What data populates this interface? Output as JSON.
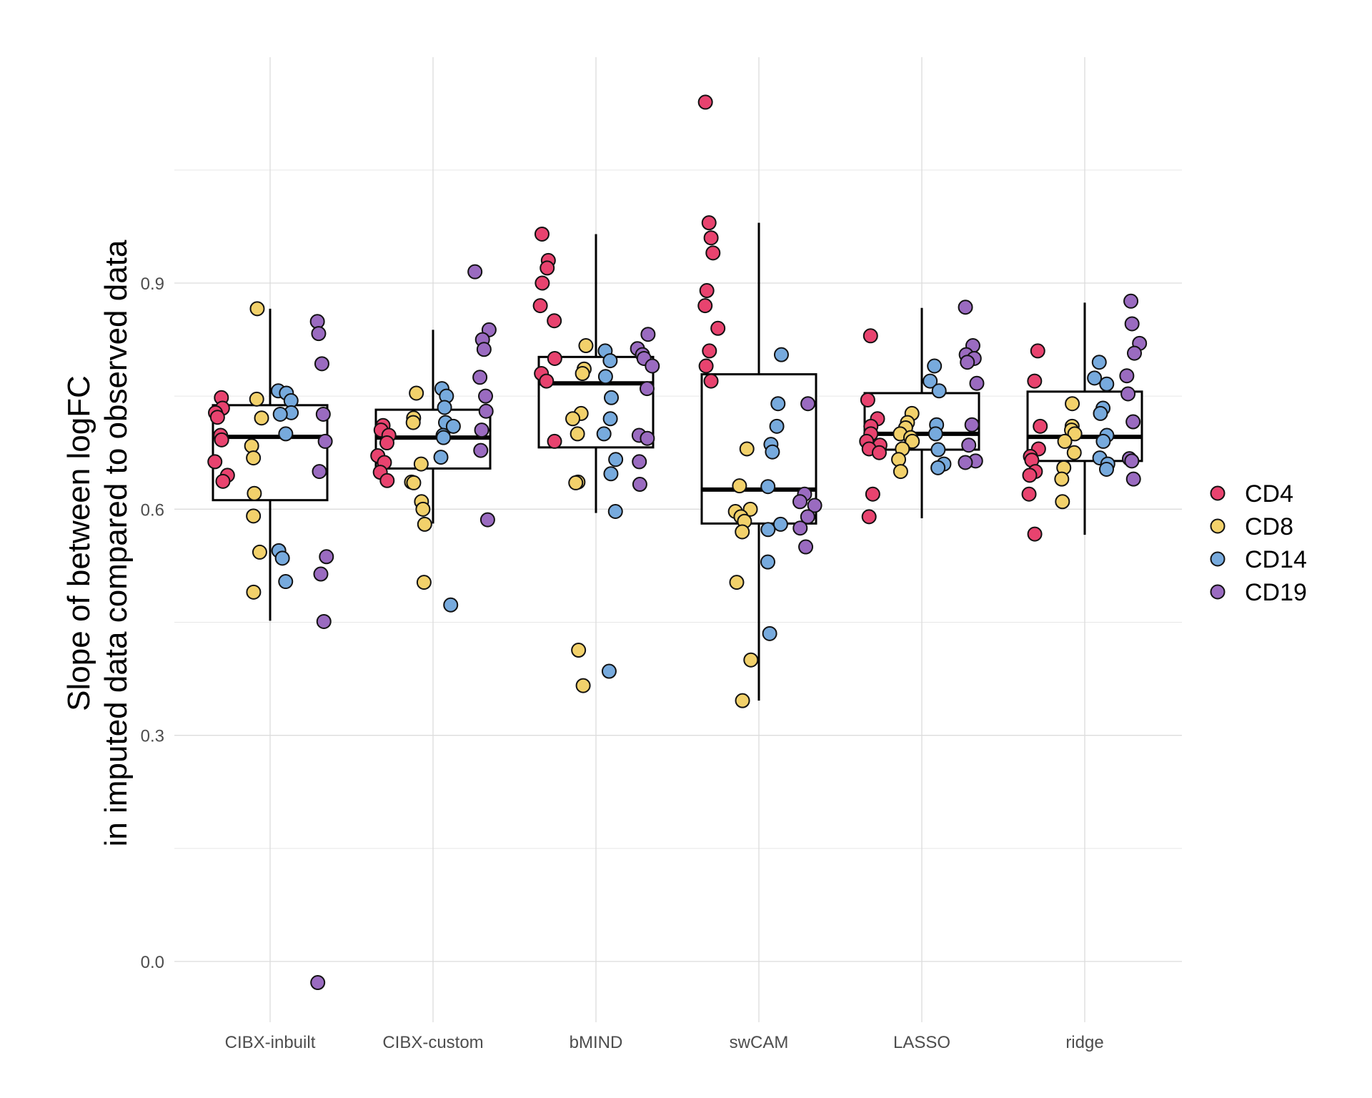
{
  "chart_data": {
    "type": "boxplot-jitter",
    "title": "",
    "xlabel": "",
    "ylabel_lines": [
      "Slope of between logFC",
      "in imputed data compared to observed data"
    ],
    "ylim": [
      -0.09,
      1.2
    ],
    "yticks": [
      0.0,
      0.3,
      0.6,
      0.9
    ],
    "ytick_labels": [
      "0.0",
      "0.3",
      "0.6",
      "0.9"
    ],
    "grid": true,
    "legend_position": "right",
    "categories": [
      "CIBX-inbuilt",
      "CIBX-custom",
      "bMIND",
      "swCAM",
      "LASSO",
      "ridge"
    ],
    "legend": [
      {
        "name": "CD4",
        "color": "#E8436F"
      },
      {
        "name": "CD8",
        "color": "#F2D16B"
      },
      {
        "name": "CD14",
        "color": "#77AADD"
      },
      {
        "name": "CD19",
        "color": "#9A6BC0"
      }
    ],
    "boxes": [
      {
        "category": "CIBX-inbuilt",
        "whisker_low": 0.452,
        "q1": 0.612,
        "median": 0.696,
        "q3": 0.738,
        "whisker_high": 0.866
      },
      {
        "category": "CIBX-custom",
        "whisker_low": 0.581,
        "q1": 0.654,
        "median": 0.695,
        "q3": 0.732,
        "whisker_high": 0.838
      },
      {
        "category": "bMIND",
        "whisker_low": 0.595,
        "q1": 0.682,
        "median": 0.767,
        "q3": 0.802,
        "whisker_high": 0.965
      },
      {
        "category": "swCAM",
        "whisker_low": 0.346,
        "q1": 0.581,
        "median": 0.626,
        "q3": 0.779,
        "whisker_high": 0.98
      },
      {
        "category": "LASSO",
        "whisker_low": 0.588,
        "q1": 0.679,
        "median": 0.7,
        "q3": 0.754,
        "whisker_high": 0.867
      },
      {
        "category": "ridge",
        "whisker_low": 0.566,
        "q1": 0.664,
        "median": 0.696,
        "q3": 0.756,
        "whisker_high": 0.874
      }
    ],
    "series": [
      {
        "name": "CD4",
        "points": [
          {
            "category": "CIBX-inbuilt",
            "values": [
              0.748,
              0.734,
              0.728,
              0.722,
              0.698,
              0.692,
              0.663,
              0.645,
              0.637
            ]
          },
          {
            "category": "CIBX-custom",
            "values": [
              0.711,
              0.705,
              0.698,
              0.688,
              0.671,
              0.662,
              0.649,
              0.638
            ]
          },
          {
            "category": "bMIND",
            "values": [
              0.965,
              0.93,
              0.92,
              0.9,
              0.87,
              0.85,
              0.8,
              0.78,
              0.77,
              0.69
            ]
          },
          {
            "category": "swCAM",
            "values": [
              1.14,
              0.98,
              0.96,
              0.94,
              0.89,
              0.87,
              0.84,
              0.81,
              0.79,
              0.77
            ]
          },
          {
            "category": "LASSO",
            "values": [
              0.83,
              0.745,
              0.72,
              0.71,
              0.7,
              0.69,
              0.685,
              0.68,
              0.675,
              0.62,
              0.59
            ]
          },
          {
            "category": "ridge",
            "values": [
              0.81,
              0.77,
              0.71,
              0.68,
              0.67,
              0.665,
              0.65,
              0.645,
              0.62,
              0.567
            ]
          }
        ]
      },
      {
        "name": "CD8",
        "points": [
          {
            "category": "CIBX-inbuilt",
            "values": [
              0.866,
              0.746,
              0.721,
              0.684,
              0.668,
              0.621,
              0.591,
              0.543,
              0.49
            ]
          },
          {
            "category": "CIBX-custom",
            "values": [
              0.754,
              0.721,
              0.715,
              0.66,
              0.636,
              0.635,
              0.61,
              0.6,
              0.58,
              0.503
            ]
          },
          {
            "category": "bMIND",
            "values": [
              0.817,
              0.786,
              0.78,
              0.727,
              0.72,
              0.7,
              0.636,
              0.635,
              0.413,
              0.366
            ]
          },
          {
            "category": "swCAM",
            "values": [
              0.68,
              0.631,
              0.6,
              0.597,
              0.59,
              0.584,
              0.57,
              0.503,
              0.4,
              0.346
            ]
          },
          {
            "category": "LASSO",
            "values": [
              0.727,
              0.715,
              0.708,
              0.7,
              0.695,
              0.69,
              0.68,
              0.666,
              0.65
            ]
          },
          {
            "category": "ridge",
            "values": [
              0.74,
              0.71,
              0.705,
              0.7,
              0.69,
              0.675,
              0.655,
              0.64,
              0.61
            ]
          }
        ]
      },
      {
        "name": "CD14",
        "points": [
          {
            "category": "CIBX-inbuilt",
            "values": [
              0.757,
              0.754,
              0.744,
              0.728,
              0.726,
              0.7,
              0.545,
              0.535,
              0.504
            ]
          },
          {
            "category": "CIBX-custom",
            "values": [
              0.76,
              0.75,
              0.735,
              0.715,
              0.71,
              0.698,
              0.695,
              0.669,
              0.473
            ]
          },
          {
            "category": "bMIND",
            "values": [
              0.81,
              0.797,
              0.776,
              0.748,
              0.72,
              0.7,
              0.666,
              0.647,
              0.597,
              0.385
            ]
          },
          {
            "category": "swCAM",
            "values": [
              0.805,
              0.74,
              0.71,
              0.686,
              0.676,
              0.63,
              0.58,
              0.573,
              0.53,
              0.435
            ]
          },
          {
            "category": "LASSO",
            "values": [
              0.79,
              0.77,
              0.757,
              0.712,
              0.7,
              0.679,
              0.66,
              0.655
            ]
          },
          {
            "category": "ridge",
            "values": [
              0.795,
              0.774,
              0.766,
              0.734,
              0.727,
              0.698,
              0.69,
              0.668,
              0.66,
              0.653
            ]
          }
        ]
      },
      {
        "name": "CD19",
        "points": [
          {
            "category": "CIBX-inbuilt",
            "values": [
              0.849,
              0.833,
              0.793,
              0.726,
              0.69,
              0.65,
              0.537,
              0.514,
              0.451,
              -0.028
            ]
          },
          {
            "category": "CIBX-custom",
            "values": [
              0.915,
              0.838,
              0.825,
              0.812,
              0.775,
              0.75,
              0.73,
              0.705,
              0.678,
              0.586
            ]
          },
          {
            "category": "bMIND",
            "values": [
              0.832,
              0.813,
              0.805,
              0.8,
              0.79,
              0.76,
              0.698,
              0.694,
              0.663,
              0.633
            ]
          },
          {
            "category": "swCAM",
            "values": [
              0.74,
              0.62,
              0.61,
              0.605,
              0.59,
              0.575,
              0.55
            ]
          },
          {
            "category": "LASSO",
            "values": [
              0.868,
              0.817,
              0.805,
              0.8,
              0.795,
              0.767,
              0.712,
              0.685,
              0.664,
              0.662
            ]
          },
          {
            "category": "ridge",
            "values": [
              0.876,
              0.846,
              0.82,
              0.807,
              0.777,
              0.753,
              0.716,
              0.667,
              0.664,
              0.64
            ]
          }
        ]
      }
    ]
  }
}
